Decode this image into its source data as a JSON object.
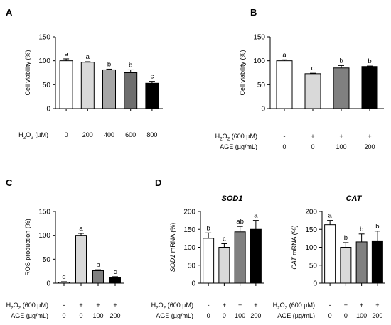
{
  "figure": {
    "bar_colors": [
      "#ffffff",
      "#d9d9d9",
      "#a6a6a6",
      "#6e6e6e",
      "#000000"
    ]
  },
  "chart_data": [
    {
      "id": "A",
      "panel_label": "A",
      "type": "bar",
      "title": "",
      "ylabel": "Cell viability (%)",
      "ylim": [
        0,
        150
      ],
      "yticks": [
        0,
        50,
        100,
        150
      ],
      "row_labels": [
        "H2O2 (µM)"
      ],
      "categories": [
        [
          "0"
        ],
        [
          "200"
        ],
        [
          "400"
        ],
        [
          "600"
        ],
        [
          "800"
        ]
      ],
      "values": [
        100,
        97,
        81,
        75,
        53
      ],
      "errors": [
        4,
        1,
        1.5,
        6,
        4
      ],
      "letters": [
        "a",
        "a",
        "b",
        "b",
        "c"
      ],
      "colors": [
        "#ffffff",
        "#d9d9d9",
        "#a6a6a6",
        "#6e6e6e",
        "#000000"
      ]
    },
    {
      "id": "B",
      "panel_label": "B",
      "type": "bar",
      "title": "",
      "ylabel": "Cell viability (%)",
      "ylim": [
        0,
        150
      ],
      "yticks": [
        0,
        50,
        100,
        150
      ],
      "row_labels": [
        "H2O2 (600 µM)",
        "AGE (µg/mL)"
      ],
      "categories": [
        [
          "-",
          "0"
        ],
        [
          "+",
          "0"
        ],
        [
          "+",
          "100"
        ],
        [
          "+",
          "200"
        ]
      ],
      "values": [
        100,
        73,
        85,
        88
      ],
      "errors": [
        2,
        1,
        5,
        1
      ],
      "letters": [
        "a",
        "c",
        "b",
        "b"
      ],
      "colors": [
        "#ffffff",
        "#d9d9d9",
        "#808080",
        "#000000"
      ]
    },
    {
      "id": "C",
      "panel_label": "C",
      "type": "bar",
      "title": "",
      "ylabel": "ROS production (%)",
      "ylim": [
        0,
        150
      ],
      "yticks": [
        0,
        50,
        100,
        150
      ],
      "row_labels": [
        "H2O2 (600 µM)",
        "AGE (µg/mL)"
      ],
      "categories": [
        [
          "-",
          "0"
        ],
        [
          "+",
          "0"
        ],
        [
          "+",
          "100"
        ],
        [
          "+",
          "200"
        ]
      ],
      "values": [
        2,
        100,
        26,
        12
      ],
      "errors": [
        1,
        4,
        2,
        1.5
      ],
      "letters": [
        "d",
        "a",
        "b",
        "c"
      ],
      "colors": [
        "#ffffff",
        "#d9d9d9",
        "#808080",
        "#000000"
      ]
    },
    {
      "id": "D1",
      "panel_label": "D",
      "type": "bar",
      "title": "SOD1",
      "ylabel_italic": "SOD1",
      "ylabel_rest": " mRNA (%)",
      "ylim": [
        0,
        200
      ],
      "yticks": [
        0,
        50,
        100,
        150,
        200
      ],
      "row_labels": [
        "H2O2 (600 µM)",
        "AGE (µg/mL)"
      ],
      "categories": [
        [
          "-",
          "0"
        ],
        [
          "+",
          "0"
        ],
        [
          "+",
          "100"
        ],
        [
          "+",
          "200"
        ]
      ],
      "values": [
        125,
        100,
        143,
        150
      ],
      "errors": [
        15,
        10,
        15,
        25
      ],
      "letters": [
        "b",
        "c",
        "ab",
        "a"
      ],
      "colors": [
        "#ffffff",
        "#d9d9d9",
        "#808080",
        "#000000"
      ]
    },
    {
      "id": "D2",
      "panel_label": "",
      "type": "bar",
      "title": "CAT",
      "ylabel_italic": "CAT",
      "ylabel_rest": " mRNA (%)",
      "ylim": [
        0,
        200
      ],
      "yticks": [
        0,
        50,
        100,
        150,
        200
      ],
      "row_labels": [
        "H2O2 (600 µM)",
        "AGE (µg/mL)"
      ],
      "categories": [
        [
          "-",
          "0"
        ],
        [
          "+",
          "0"
        ],
        [
          "+",
          "100"
        ],
        [
          "+",
          "200"
        ]
      ],
      "values": [
        163,
        100,
        115,
        118
      ],
      "errors": [
        12,
        13,
        22,
        27
      ],
      "letters": [
        "a",
        "b",
        "b",
        "b"
      ],
      "colors": [
        "#ffffff",
        "#d9d9d9",
        "#808080",
        "#000000"
      ]
    }
  ]
}
